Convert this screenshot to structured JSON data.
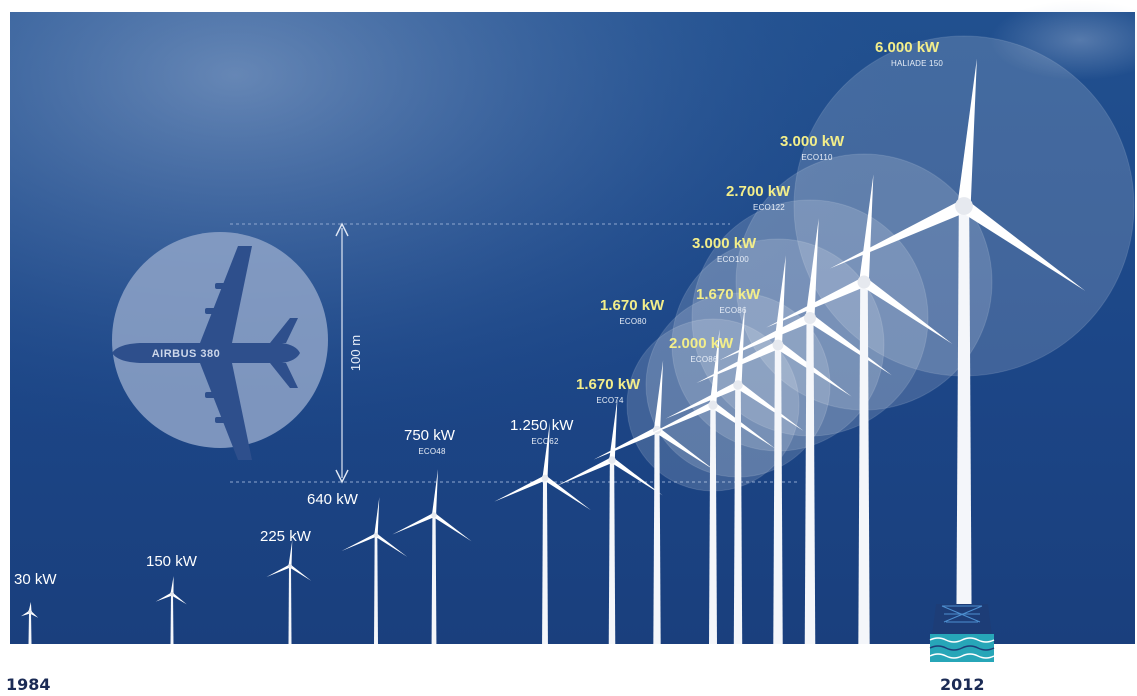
{
  "start_year": "1984",
  "end_year": "2012",
  "comparison": {
    "aircraft_label": "AIRBUS 380",
    "height_label": "100 m"
  },
  "colors": {
    "sky_top": "#1f4a8f",
    "sky_bottom": "#1a3f7e",
    "highlight_text": "#f3ee8a",
    "year_text": "#1b2b55"
  },
  "turbines": [
    {
      "power": "30 kW",
      "model": "",
      "highlight": false
    },
    {
      "power": "150 kW",
      "model": "",
      "highlight": false
    },
    {
      "power": "225 kW",
      "model": "",
      "highlight": false
    },
    {
      "power": "640 kW",
      "model": "",
      "highlight": false
    },
    {
      "power": "750 kW",
      "model": "ECO48",
      "highlight": false
    },
    {
      "power": "1.250 kW",
      "model": "ECO62",
      "highlight": false
    },
    {
      "power": "1.670 kW",
      "model": "ECO74",
      "highlight": true
    },
    {
      "power": "1.670 kW",
      "model": "ECO80",
      "highlight": true
    },
    {
      "power": "2.000 kW",
      "model": "ECO86",
      "highlight": true
    },
    {
      "power": "1.670 kW",
      "model": "ECO86",
      "highlight": true
    },
    {
      "power": "3.000 kW",
      "model": "ECO100",
      "highlight": true
    },
    {
      "power": "2.700 kW",
      "model": "ECO122",
      "highlight": true
    },
    {
      "power": "3.000 kW",
      "model": "ECO110",
      "highlight": true
    },
    {
      "power": "6.000 kW",
      "model": "HALIADE 150",
      "highlight": true
    }
  ]
}
